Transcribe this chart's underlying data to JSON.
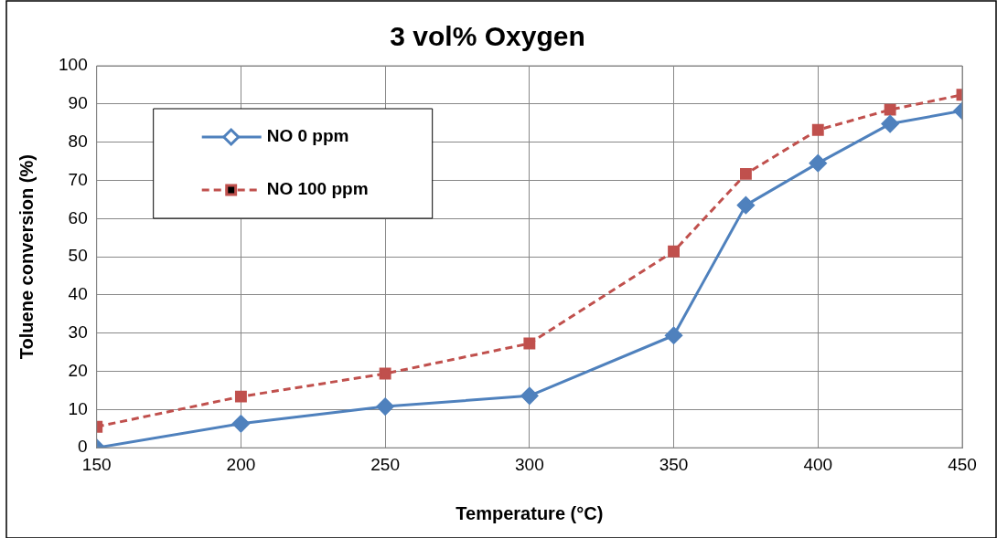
{
  "chart_data": {
    "type": "line",
    "title": "3 vol% Oxygen",
    "xlabel": "Temperature (°C)",
    "ylabel": "Toluene conversion (%)",
    "x": [
      150,
      200,
      250,
      300,
      350,
      375,
      400,
      425,
      450
    ],
    "series": [
      {
        "name": "NO 0 ppm",
        "color": "#4f81bd",
        "marker": "diamond",
        "line_style": "solid",
        "values": [
          0,
          6.3,
          10.8,
          13.6,
          29.4,
          63.5,
          74.5,
          84.8,
          88.2
        ]
      },
      {
        "name": "NO 100 ppm",
        "color": "#c0504d",
        "marker": "square",
        "line_style": "dashed",
        "values": [
          5.5,
          13.4,
          19.4,
          27.3,
          51.4,
          71.7,
          83.2,
          88.5,
          92.4
        ]
      }
    ],
    "xlim": [
      150,
      450
    ],
    "xticks": [
      150,
      200,
      250,
      300,
      350,
      400,
      450
    ],
    "ylim": [
      0,
      100
    ],
    "yticks": [
      0,
      10,
      20,
      30,
      40,
      50,
      60,
      70,
      80,
      90,
      100
    ],
    "grid": true,
    "legend": "top left"
  }
}
